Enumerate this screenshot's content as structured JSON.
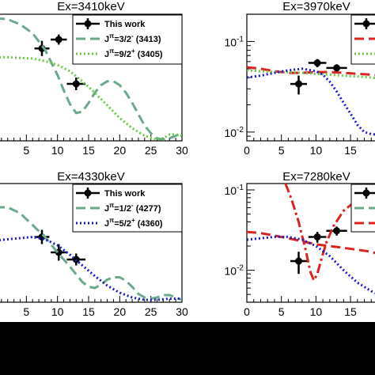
{
  "chart_data": [
    {
      "type": "scatter",
      "title": "Ex=3410keV",
      "xlabel": "",
      "ylabel": "",
      "xlim": [
        0,
        30
      ],
      "y_scale": "linear",
      "ylim": [
        0,
        1
      ],
      "x_ticks": [
        "5",
        "10",
        "15",
        "20",
        "25",
        "30"
      ],
      "y_ticks": [],
      "legend_position": "top-right",
      "series": [
        {
          "name": "This work",
          "kind": "points",
          "color": "#000000",
          "x": [
            7.5,
            10.2,
            13.0
          ],
          "y": [
            0.73,
            0.8,
            0.45
          ],
          "xerr": [
            1.2,
            1.3,
            1.5
          ],
          "yerr": [
            0.06,
            0.04,
            0.05
          ]
        },
        {
          "name": "Jπ=3/2- (3413)",
          "kind": "line",
          "color": "#6aaa8a",
          "dash": "dashed",
          "x": [
            0,
            2,
            4,
            6,
            8,
            10,
            11,
            12,
            13,
            14,
            15,
            16,
            17,
            18,
            19,
            20,
            21,
            22,
            23,
            24,
            25,
            26,
            27,
            28,
            29,
            30
          ],
          "y": [
            0.97,
            0.96,
            0.92,
            0.85,
            0.72,
            0.52,
            0.4,
            0.29,
            0.22,
            0.23,
            0.3,
            0.38,
            0.44,
            0.47,
            0.47,
            0.44,
            0.38,
            0.3,
            0.21,
            0.12,
            0.06,
            0.02,
            0.01,
            0.02,
            0.04,
            0.06
          ]
        },
        {
          "name": "Jπ=9/2+ (3405)",
          "kind": "line",
          "color": "#66cc44",
          "dash": "dotted",
          "x": [
            0,
            2,
            4,
            6,
            8,
            10,
            12,
            14,
            16,
            18,
            20,
            22,
            24,
            26,
            27,
            28,
            29,
            30
          ],
          "y": [
            0.66,
            0.66,
            0.655,
            0.65,
            0.63,
            0.6,
            0.55,
            0.47,
            0.38,
            0.28,
            0.18,
            0.1,
            0.04,
            0.01,
            0.02,
            0.05,
            0.05,
            0.04
          ]
        }
      ]
    },
    {
      "type": "scatter",
      "title": "Ex=3970keV",
      "xlabel": "",
      "ylabel": "",
      "xlim": [
        0,
        19
      ],
      "y_scale": "log",
      "ylim": [
        0.008,
        0.2
      ],
      "x_ticks": [
        "0",
        "5",
        "10",
        "15"
      ],
      "y_ticks": [
        "10-1",
        "10-2"
      ],
      "legend_position": "top-right",
      "series": [
        {
          "name": "",
          "kind": "points",
          "color": "#000000",
          "x": [
            7.5,
            10.2,
            13.0
          ],
          "y": [
            0.034,
            0.058,
            0.051
          ],
          "xerr": [
            1.2,
            1.3,
            1.5
          ],
          "yerr": [
            0.008,
            0.006,
            0.005
          ]
        },
        {
          "name": "",
          "kind": "line",
          "color": "#dd2222",
          "dash": "dashed",
          "x": [
            0,
            2,
            4,
            6,
            8,
            10,
            12,
            14,
            16,
            18,
            19
          ],
          "y": [
            0.052,
            0.05,
            0.047,
            0.045,
            0.045,
            0.046,
            0.046,
            0.045,
            0.044,
            0.043,
            0.042
          ]
        },
        {
          "name": "",
          "kind": "line",
          "color": "#66cc44",
          "dash": "dotted",
          "x": [
            0,
            2,
            4,
            6,
            8,
            10,
            12,
            14,
            16,
            18,
            19
          ],
          "y": [
            0.048,
            0.047,
            0.046,
            0.046,
            0.045,
            0.044,
            0.043,
            0.042,
            0.041,
            0.04,
            0.039
          ]
        },
        {
          "name": "",
          "kind": "line",
          "color": "#1a1acc",
          "dash": "dotted",
          "x": [
            0,
            2,
            4,
            6,
            8,
            10,
            11,
            12,
            13,
            14,
            15,
            16,
            17,
            18,
            19
          ],
          "y": [
            0.04,
            0.042,
            0.045,
            0.048,
            0.05,
            0.047,
            0.043,
            0.036,
            0.028,
            0.021,
            0.016,
            0.012,
            0.01,
            0.0095,
            0.0093
          ]
        }
      ]
    },
    {
      "type": "scatter",
      "title": "Ex=4330keV",
      "xlabel": "",
      "ylabel": "",
      "xlim": [
        0,
        30
      ],
      "y_scale": "linear",
      "ylim": [
        0,
        1
      ],
      "x_ticks": [
        "5",
        "10",
        "15",
        "20",
        "25",
        "30"
      ],
      "y_ticks": [],
      "legend_position": "top-right",
      "series": [
        {
          "name": "This work",
          "kind": "points",
          "color": "#000000",
          "x": [
            7.5,
            10.2,
            13.0
          ],
          "y": [
            0.55,
            0.42,
            0.36
          ],
          "xerr": [
            1.2,
            1.3,
            1.5
          ],
          "yerr": [
            0.06,
            0.07,
            0.05
          ]
        },
        {
          "name": "Jπ=1/2- (4277)",
          "kind": "line",
          "color": "#6aaa8a",
          "dash": "dashed",
          "x": [
            0,
            2,
            4,
            6,
            8,
            10,
            12,
            14,
            15,
            16,
            17,
            18,
            19,
            20,
            21,
            22,
            23,
            24,
            25,
            26,
            27,
            28,
            29,
            30
          ],
          "y": [
            0.8,
            0.8,
            0.75,
            0.65,
            0.55,
            0.42,
            0.3,
            0.17,
            0.13,
            0.12,
            0.15,
            0.19,
            0.21,
            0.21,
            0.18,
            0.13,
            0.07,
            0.04,
            0.03,
            0.04,
            0.06,
            0.06,
            0.04,
            0.02
          ]
        },
        {
          "name": "Jπ=5/2+ (4360)",
          "kind": "line",
          "color": "#1a1acc",
          "dash": "dotted",
          "x": [
            0,
            2,
            4,
            6,
            8,
            10,
            12,
            14,
            16,
            18,
            20,
            22,
            24,
            26,
            28,
            30
          ],
          "y": [
            0.52,
            0.53,
            0.54,
            0.55,
            0.53,
            0.48,
            0.4,
            0.31,
            0.22,
            0.14,
            0.08,
            0.04,
            0.02,
            0.02,
            0.03,
            0.03
          ]
        }
      ]
    },
    {
      "type": "scatter",
      "title": "Ex=7280keV",
      "xlabel": "",
      "ylabel": "",
      "xlim": [
        0,
        19
      ],
      "y_scale": "log",
      "ylim": [
        0.004,
        0.12
      ],
      "x_ticks": [
        "0",
        "5",
        "10",
        "15"
      ],
      "y_ticks": [
        "10-1",
        "10-2"
      ],
      "legend_position": "top-right",
      "series": [
        {
          "name": "",
          "kind": "points",
          "color": "#000000",
          "x": [
            7.5,
            10.2,
            13.0
          ],
          "y": [
            0.013,
            0.026,
            0.031
          ],
          "xerr": [
            1.2,
            1.3,
            1.5
          ],
          "yerr": [
            0.004,
            0.004,
            0.004
          ]
        },
        {
          "name": "",
          "kind": "line",
          "color": "#dd2222",
          "dash": "dashdot",
          "x": [
            5.6,
            6.5,
            7.5,
            8.5,
            9.2,
            9.7,
            10.2,
            10.8,
            11.5,
            12.5,
            14,
            15.5,
            17,
            19
          ],
          "y": [
            0.12,
            0.075,
            0.04,
            0.018,
            0.0095,
            0.0075,
            0.009,
            0.014,
            0.022,
            0.035,
            0.055,
            0.07,
            0.085,
            0.1
          ]
        },
        {
          "name": "",
          "kind": "line",
          "color": "#dd2222",
          "dash": "dashed",
          "x": [
            0,
            2,
            4,
            6,
            8,
            10,
            12,
            14,
            16,
            18,
            19
          ],
          "y": [
            0.03,
            0.029,
            0.027,
            0.025,
            0.023,
            0.021,
            0.02,
            0.019,
            0.018,
            0.017,
            0.016
          ]
        },
        {
          "name": "",
          "kind": "line",
          "color": "#1a1acc",
          "dash": "dotted",
          "x": [
            0,
            2,
            4,
            6,
            8,
            10,
            12,
            14,
            16,
            18,
            19
          ],
          "y": [
            0.024,
            0.025,
            0.026,
            0.026,
            0.024,
            0.02,
            0.015,
            0.01,
            0.007,
            0.0055,
            0.005
          ]
        }
      ]
    }
  ],
  "legends": [
    {
      "entries": [
        {
          "label": "This work",
          "kind": "point",
          "color": "#000000"
        },
        {
          "label": "Jπ=3/2- (3413)",
          "kind": "dashed",
          "color": "#6aaa8a"
        },
        {
          "label": "Jπ=9/2+ (3405)",
          "kind": "dotted",
          "color": "#66cc44"
        }
      ]
    },
    {
      "entries": [
        {
          "label": "",
          "kind": "point",
          "color": "#000000"
        },
        {
          "label": "",
          "kind": "dashed",
          "color": "#dd2222"
        },
        {
          "label": "",
          "kind": "dotted",
          "color": "#66cc44"
        }
      ]
    },
    {
      "entries": [
        {
          "label": "This work",
          "kind": "point",
          "color": "#000000"
        },
        {
          "label": "Jπ=1/2- (4277)",
          "kind": "dashed",
          "color": "#6aaa8a"
        },
        {
          "label": "Jπ=5/2+ (4360)",
          "kind": "dotted",
          "color": "#1a1acc"
        }
      ]
    },
    {
      "entries": [
        {
          "label": "",
          "kind": "point",
          "color": "#000000"
        },
        {
          "label": "",
          "kind": "dashed",
          "color": "#6aaa8a"
        },
        {
          "label": "",
          "kind": "dashed",
          "color": "#dd2222"
        }
      ]
    }
  ]
}
